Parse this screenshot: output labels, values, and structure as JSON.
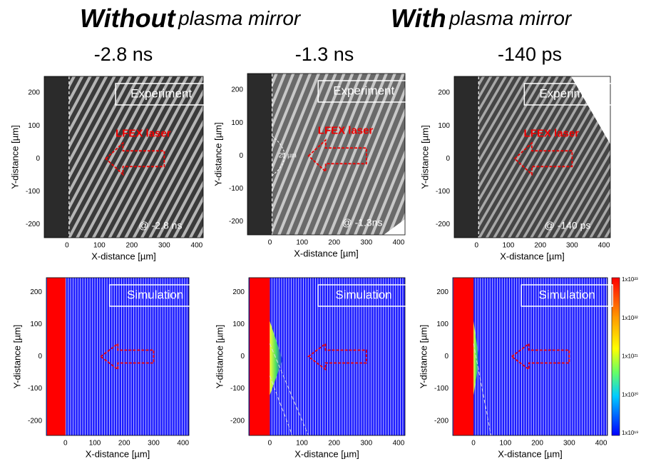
{
  "title": {
    "left_bold": "Without",
    "left_rest": "plasma mirror",
    "right_bold": "With",
    "right_rest": "plasma mirror"
  },
  "columns": [
    {
      "time": "-2.8 ns",
      "experiment": {
        "label": "Experiment",
        "laser": "LFEX laser",
        "stamp": "@ -2.8 ns"
      },
      "simulation": {
        "label": "Simulation"
      }
    },
    {
      "time": "-1.3 ns",
      "experiment": {
        "label": "Experiment",
        "laser": "LFEX laser",
        "stamp": "@ -1.3ns",
        "width_note": "25 µm"
      },
      "simulation": {
        "label": "Simulation"
      }
    },
    {
      "time": "-140 ps",
      "experiment": {
        "label": "Experiment",
        "laser": "LFEX laser",
        "stamp": "@ -140 ps"
      },
      "simulation": {
        "label": "Simulation"
      }
    }
  ],
  "axes": {
    "x_label": "X-distance [µm]",
    "y_label": "Y-distance [µm]",
    "experiment": {
      "xlim": [
        -70,
        420
      ],
      "ylim": [
        -240,
        250
      ],
      "xticks": [
        0,
        100,
        200,
        300,
        400
      ],
      "yticks": [
        -200,
        -100,
        0,
        100,
        200
      ]
    },
    "simulation": {
      "xlim": [
        -65,
        420
      ],
      "ylim": [
        -245,
        245
      ],
      "xticks": [
        0,
        100,
        200,
        300,
        400
      ],
      "yticks": [
        -200,
        -100,
        0,
        100,
        200
      ]
    }
  },
  "colorbar": {
    "labels": [
      "1x10²³",
      "1x10²²",
      "1x10²¹",
      "1x10²⁰",
      "1x10¹⁹"
    ]
  }
}
